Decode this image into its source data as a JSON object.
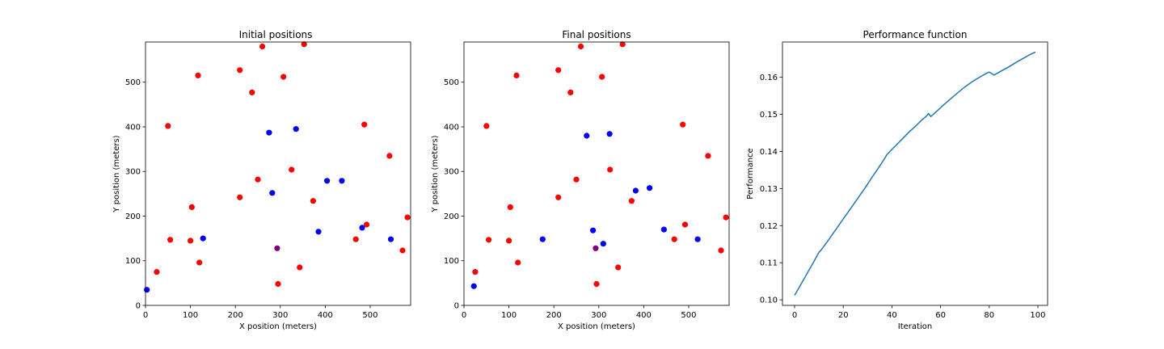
{
  "colors": {
    "red": "#ff0000",
    "blue": "#0000ff",
    "purple": "#800080",
    "line": "#1f77b4"
  },
  "chart_data": [
    {
      "type": "scatter",
      "title": "Initial positions",
      "xlabel": "X position (meters)",
      "ylabel": "Y position (meters)",
      "xlim": [
        0,
        590
      ],
      "ylim": [
        0,
        590
      ],
      "xticks": [
        0,
        100,
        200,
        300,
        400,
        500
      ],
      "yticks": [
        0,
        100,
        200,
        300,
        400,
        500
      ],
      "grid": false,
      "series": [
        {
          "color": "red",
          "points": [
            [
              25,
              75
            ],
            [
              55,
              147
            ],
            [
              50,
              402
            ],
            [
              100,
              145
            ],
            [
              103,
              220
            ],
            [
              120,
              96
            ],
            [
              117,
              515
            ],
            [
              210,
              242
            ],
            [
              210,
              527
            ],
            [
              237,
              477
            ],
            [
              250,
              282
            ],
            [
              260,
              580
            ],
            [
              295,
              48
            ],
            [
              307,
              512
            ],
            [
              325,
              304
            ],
            [
              343,
              85
            ],
            [
              353,
              585
            ],
            [
              373,
              234
            ],
            [
              468,
              148
            ],
            [
              487,
              405
            ],
            [
              492,
              181
            ],
            [
              543,
              335
            ],
            [
              572,
              123
            ],
            [
              583,
              197
            ]
          ]
        },
        {
          "color": "blue",
          "points": [
            [
              3,
              35
            ],
            [
              128,
              150
            ],
            [
              275,
              387
            ],
            [
              282,
              252
            ],
            [
              335,
              395
            ],
            [
              385,
              165
            ],
            [
              404,
              279
            ],
            [
              437,
              279
            ],
            [
              482,
              174
            ],
            [
              546,
              148
            ]
          ]
        },
        {
          "color": "purple",
          "points": [
            [
              293,
              128
            ]
          ]
        }
      ]
    },
    {
      "type": "scatter",
      "title": "Final positions",
      "xlabel": "X position (meters)",
      "ylabel": "Y position (meters)",
      "xlim": [
        0,
        590
      ],
      "ylim": [
        0,
        590
      ],
      "xticks": [
        0,
        100,
        200,
        300,
        400,
        500
      ],
      "yticks": [
        0,
        100,
        200,
        300,
        400,
        500
      ],
      "grid": false,
      "series": [
        {
          "color": "red",
          "points": [
            [
              25,
              75
            ],
            [
              55,
              147
            ],
            [
              50,
              402
            ],
            [
              100,
              145
            ],
            [
              103,
              220
            ],
            [
              120,
              96
            ],
            [
              117,
              515
            ],
            [
              210,
              242
            ],
            [
              210,
              527
            ],
            [
              237,
              477
            ],
            [
              250,
              282
            ],
            [
              260,
              580
            ],
            [
              295,
              48
            ],
            [
              307,
              512
            ],
            [
              325,
              304
            ],
            [
              343,
              85
            ],
            [
              353,
              585
            ],
            [
              373,
              234
            ],
            [
              468,
              148
            ],
            [
              487,
              405
            ],
            [
              492,
              181
            ],
            [
              543,
              335
            ],
            [
              572,
              123
            ],
            [
              583,
              197
            ]
          ]
        },
        {
          "color": "blue",
          "points": [
            [
              22,
              43
            ],
            [
              175,
              148
            ],
            [
              273,
              380
            ],
            [
              287,
              168
            ],
            [
              310,
              138
            ],
            [
              324,
              384
            ],
            [
              382,
              257
            ],
            [
              413,
              263
            ],
            [
              445,
              170
            ],
            [
              520,
              148
            ]
          ]
        },
        {
          "color": "purple",
          "points": [
            [
              293,
              128
            ]
          ]
        }
      ]
    },
    {
      "type": "line",
      "title": "Performance function",
      "xlabel": "Iteration",
      "ylabel": "Performance",
      "xlim": [
        -5,
        104
      ],
      "ylim": [
        0.0985,
        0.1695
      ],
      "xticks": [
        0,
        20,
        40,
        60,
        80,
        100
      ],
      "yticks": [
        0.1,
        0.11,
        0.12,
        0.13,
        0.14,
        0.15,
        0.16
      ],
      "ytick_labels": [
        "0.10",
        "0.11",
        "0.12",
        "0.13",
        "0.14",
        "0.15",
        "0.16"
      ],
      "grid": false,
      "series": [
        {
          "color": "line",
          "points": [
            [
              0,
              0.1012
            ],
            [
              2,
              0.1035
            ],
            [
              4,
              0.1058
            ],
            [
              6,
              0.1081
            ],
            [
              8,
              0.1104
            ],
            [
              10,
              0.1128
            ],
            [
              11,
              0.1135
            ],
            [
              14,
              0.1162
            ],
            [
              17,
              0.119
            ],
            [
              20,
              0.1218
            ],
            [
              23,
              0.1246
            ],
            [
              26,
              0.1274
            ],
            [
              29,
              0.1302
            ],
            [
              32,
              0.1332
            ],
            [
              35,
              0.1361
            ],
            [
              37,
              0.1381
            ],
            [
              38,
              0.1392
            ],
            [
              41,
              0.1412
            ],
            [
              44,
              0.1432
            ],
            [
              47,
              0.1452
            ],
            [
              50,
              0.147
            ],
            [
              52,
              0.1483
            ],
            [
              54,
              0.1494
            ],
            [
              55,
              0.1502
            ],
            [
              56,
              0.1494
            ],
            [
              58,
              0.1506
            ],
            [
              61,
              0.1524
            ],
            [
              64,
              0.1541
            ],
            [
              67,
              0.1558
            ],
            [
              70,
              0.1574
            ],
            [
              73,
              0.1588
            ],
            [
              76,
              0.16
            ],
            [
              79,
              0.1611
            ],
            [
              80,
              0.1614
            ],
            [
              82,
              0.1606
            ],
            [
              85,
              0.1617
            ],
            [
              88,
              0.1628
            ],
            [
              91,
              0.164
            ],
            [
              94,
              0.1651
            ],
            [
              97,
              0.1662
            ],
            [
              99,
              0.1668
            ]
          ]
        }
      ]
    }
  ]
}
